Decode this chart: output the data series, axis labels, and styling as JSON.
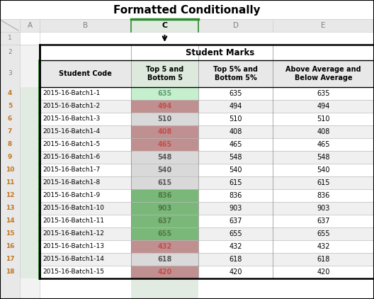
{
  "title": "Formatted Conditionally",
  "students": [
    "2015-16-Batch1-1",
    "2015-16-Batch1-2",
    "2015-16-Batch1-3",
    "2015-16-Batch1-4",
    "2015-16-Batch1-5",
    "2015-16-Batch1-6",
    "2015-16-Batch1-7",
    "2015-16-Batch1-8",
    "2015-16-Batch1-9",
    "2015-16-Batch1-10",
    "2015-16-Batch1-11",
    "2015-16-Batch1-12",
    "2015-16-Batch1-13",
    "2015-16-Batch1-14",
    "2015-16-Batch1-15"
  ],
  "marks": [
    635,
    494,
    510,
    408,
    465,
    548,
    540,
    615,
    836,
    903,
    637,
    655,
    432,
    618,
    420
  ],
  "cell_bg_colors": [
    "#c6efce",
    "#c09090",
    "#d9d9d9",
    "#c09090",
    "#c09090",
    "#d9d9d9",
    "#d9d9d9",
    "#d9d9d9",
    "#7ab87a",
    "#7ab87a",
    "#7ab87a",
    "#7ab87a",
    "#c09090",
    "#d9d9d9",
    "#c09090"
  ],
  "cell_text_colors": [
    "#5f9e6e",
    "#c0504d",
    "#595959",
    "#c0504d",
    "#c0504d",
    "#595959",
    "#595959",
    "#595959",
    "#4f7942",
    "#4f7942",
    "#4f7942",
    "#4f7942",
    "#c0504d",
    "#595959",
    "#c0504d"
  ],
  "col_headers": [
    "Student Code",
    "Top 5 and\nBottom 5",
    "Top 5% and\nBottom 5%",
    "Above Average and\nBelow Average"
  ],
  "row_numbers": [
    "1",
    "2",
    "3",
    "4",
    "5",
    "6",
    "7",
    "8",
    "9",
    "10",
    "11",
    "12",
    "13",
    "14",
    "15",
    "16",
    "17",
    "18"
  ],
  "col_letters": [
    "A",
    "B",
    "C",
    "D",
    "E"
  ],
  "green_border": "#2e8b2e",
  "row_num_color": "#c07820",
  "selected_col_letter_color": "#000000",
  "header_letter_color": "#808080"
}
